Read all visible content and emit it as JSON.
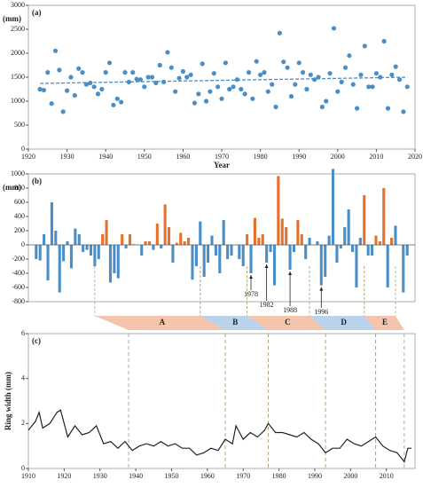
{
  "chart_data": [
    {
      "type": "scatter",
      "title": "(a)",
      "y_label": "(mm)",
      "x_label": "Year",
      "color": "#4a8ec8",
      "x": [
        1923,
        1924,
        1925,
        1926,
        1927,
        1928,
        1929,
        1930,
        1931,
        1932,
        1933,
        1934,
        1935,
        1936,
        1937,
        1938,
        1939,
        1940,
        1941,
        1942,
        1943,
        1944,
        1945,
        1946,
        1947,
        1948,
        1949,
        1950,
        1951,
        1952,
        1953,
        1954,
        1955,
        1956,
        1957,
        1958,
        1959,
        1960,
        1961,
        1962,
        1963,
        1964,
        1965,
        1966,
        1967,
        1968,
        1969,
        1970,
        1971,
        1972,
        1973,
        1974,
        1975,
        1976,
        1977,
        1978,
        1979,
        1980,
        1981,
        1982,
        1983,
        1984,
        1985,
        1986,
        1987,
        1988,
        1989,
        1990,
        1991,
        1992,
        1993,
        1994,
        1995,
        1996,
        1997,
        1998,
        1999,
        2000,
        2001,
        2002,
        2003,
        2004,
        2005,
        2006,
        2007,
        2008,
        2009,
        2010,
        2011,
        2012,
        2013,
        2014,
        2015,
        2016,
        2017,
        2018
      ],
      "values": [
        1250,
        1230,
        1600,
        950,
        2050,
        1650,
        780,
        1220,
        1500,
        1120,
        1680,
        1600,
        1350,
        1380,
        1300,
        1150,
        1250,
        1600,
        1800,
        920,
        1050,
        980,
        1600,
        1400,
        1600,
        1460,
        1450,
        1300,
        1500,
        1500,
        1380,
        1750,
        1400,
        2020,
        1700,
        1200,
        1480,
        1620,
        1500,
        1550,
        960,
        1150,
        1780,
        1000,
        1200,
        1580,
        1300,
        1050,
        1800,
        1250,
        1300,
        1450,
        1250,
        1150,
        1600,
        1050,
        1830,
        1550,
        1600,
        1200,
        1350,
        880,
        2420,
        1820,
        1700,
        1100,
        1350,
        1800,
        1600,
        1250,
        1550,
        1450,
        1500,
        880,
        1000,
        1580,
        2520,
        1200,
        1400,
        1700,
        1950,
        1350,
        850,
        1550,
        2150,
        1300,
        1300,
        1580,
        1500,
        2250,
        850,
        1550,
        1720,
        1450,
        780,
        1300
      ],
      "trend": {
        "x": [
          1923,
          2018
        ],
        "values": [
          1370,
          1500
        ]
      },
      "xlim": [
        1920,
        2020
      ],
      "xticks": [
        1920,
        1930,
        1940,
        1950,
        1960,
        1970,
        1980,
        1990,
        2000,
        2010,
        2020
      ],
      "ylim": [
        0,
        3000
      ],
      "yticks": [
        0,
        500,
        1000,
        1500,
        2000,
        2500,
        3000
      ]
    },
    {
      "type": "bar",
      "title": "(b)",
      "y_label": "(mm)",
      "color": "#4a8ec8",
      "highlight_color": "#e8702a",
      "x": [
        1923,
        1924,
        1925,
        1926,
        1927,
        1928,
        1929,
        1930,
        1931,
        1932,
        1933,
        1934,
        1935,
        1936,
        1937,
        1938,
        1939,
        1940,
        1941,
        1942,
        1943,
        1944,
        1945,
        1946,
        1947,
        1948,
        1949,
        1950,
        1951,
        1952,
        1953,
        1954,
        1955,
        1956,
        1957,
        1958,
        1959,
        1960,
        1961,
        1962,
        1963,
        1964,
        1965,
        1966,
        1967,
        1968,
        1969,
        1970,
        1971,
        1972,
        1973,
        1974,
        1975,
        1976,
        1977,
        1978,
        1979,
        1980,
        1981,
        1982,
        1983,
        1984,
        1985,
        1986,
        1987,
        1988,
        1989,
        1990,
        1991,
        1992,
        1993,
        1994,
        1995,
        1996,
        1997,
        1998,
        1999,
        2000,
        2001,
        2002,
        2003,
        2004,
        2005,
        2006,
        2007,
        2008,
        2009,
        2010,
        2011,
        2012,
        2013,
        2014,
        2015,
        2016,
        2017,
        2018
      ],
      "values": [
        -200,
        -220,
        150,
        -500,
        600,
        200,
        -670,
        -230,
        50,
        -330,
        230,
        150,
        -100,
        -70,
        -150,
        -300,
        -200,
        150,
        350,
        -530,
        -400,
        -470,
        150,
        -50,
        150,
        10,
        0,
        -150,
        50,
        50,
        -70,
        300,
        -50,
        570,
        250,
        -250,
        30,
        170,
        50,
        100,
        -490,
        -300,
        330,
        -450,
        -250,
        130,
        -150,
        -400,
        350,
        -200,
        -150,
        0,
        -200,
        -300,
        150,
        -400,
        380,
        100,
        150,
        -250,
        -100,
        -570,
        970,
        370,
        250,
        -350,
        -100,
        350,
        150,
        -200,
        100,
        0,
        50,
        -570,
        -450,
        130,
        1070,
        -250,
        -50,
        250,
        500,
        -100,
        -600,
        100,
        700,
        -150,
        -150,
        130,
        50,
        800,
        -600,
        100,
        270,
        0,
        -670,
        -150
      ],
      "periods": [
        {
          "label": "A",
          "start": 1938,
          "end": 1965,
          "color": "#f5c4ad",
          "highlight": true
        },
        {
          "label": "B",
          "start": 1965,
          "end": 1977,
          "color": "#b9d3ec",
          "highlight": false
        },
        {
          "label": "C",
          "start": 1977,
          "end": 1993,
          "color": "#f5c4ad",
          "highlight": true
        },
        {
          "label": "D",
          "start": 1993,
          "end": 2007,
          "color": "#b9d3ec",
          "highlight": false
        },
        {
          "label": "E",
          "start": 2007,
          "end": 2015,
          "color": "#f5c4ad",
          "highlight": true
        }
      ],
      "annotations": [
        {
          "label": "1978",
          "x": 1978
        },
        {
          "label": "1982",
          "x": 1982
        },
        {
          "label": "1988",
          "x": 1988
        },
        {
          "label": "1996",
          "x": 1996
        }
      ],
      "xlim": [
        1921,
        2020
      ],
      "ylim": [
        -800,
        1000
      ],
      "yticks": [
        -800,
        -600,
        -400,
        -200,
        0,
        200,
        400,
        600,
        800,
        1000
      ]
    },
    {
      "type": "line",
      "title": "(c)",
      "y_label": "Ring width (mm)",
      "color": "#222222",
      "x": [
        1910,
        1912,
        1913,
        1914,
        1916,
        1918,
        1919,
        1921,
        1923,
        1925,
        1927,
        1929,
        1931,
        1933,
        1935,
        1937,
        1939,
        1941,
        1943,
        1945,
        1947,
        1949,
        1951,
        1953,
        1955,
        1957,
        1959,
        1961,
        1963,
        1965,
        1967,
        1968,
        1970,
        1972,
        1974,
        1976,
        1977,
        1979,
        1981,
        1983,
        1985,
        1987,
        1989,
        1991,
        1993,
        1995,
        1997,
        1999,
        2001,
        2003,
        2005,
        2007,
        2009,
        2011,
        2013,
        2015,
        2016,
        2017
      ],
      "values": [
        1.7,
        2.1,
        2.5,
        1.8,
        2.0,
        2.5,
        2.6,
        1.4,
        1.9,
        1.5,
        1.6,
        1.9,
        1.1,
        1.2,
        0.9,
        1.2,
        0.8,
        1.0,
        1.1,
        1.0,
        1.2,
        1.0,
        1.1,
        0.9,
        0.9,
        0.6,
        0.7,
        0.9,
        0.8,
        1.3,
        1.1,
        1.9,
        1.3,
        1.6,
        1.4,
        1.7,
        2.0,
        1.6,
        1.6,
        1.5,
        1.4,
        1.6,
        1.3,
        1.1,
        0.7,
        0.9,
        0.9,
        1.3,
        1.1,
        1.0,
        1.2,
        1.4,
        1.0,
        0.8,
        0.7,
        0.3,
        0.9,
        0.9
      ],
      "xlim": [
        1910,
        2018
      ],
      "xticks": [
        1910,
        1920,
        1930,
        1940,
        1950,
        1960,
        1970,
        1980,
        1990,
        2000,
        2010
      ],
      "ylim": [
        0,
        6
      ],
      "yticks": [
        0,
        2,
        4,
        6
      ]
    }
  ]
}
